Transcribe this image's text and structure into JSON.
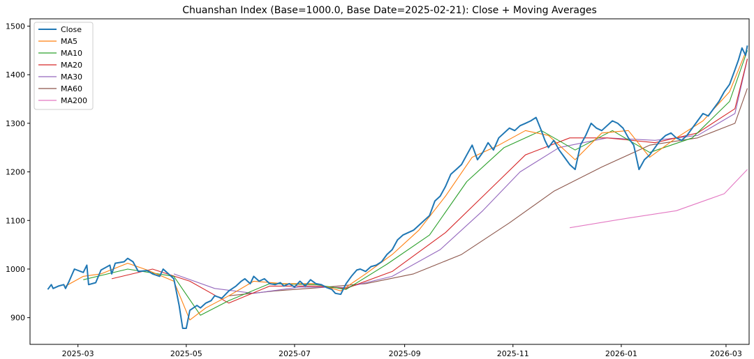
{
  "chart_data": {
    "type": "line",
    "title": "Chuanshan Index (Base=1000.0, Base Date=2025-02-21): Close + Moving Averages",
    "xlabel": "",
    "ylabel": "",
    "xlim": [
      "2025-02-02",
      "2026-03-14"
    ],
    "ylim": [
      845,
      1515
    ],
    "x_ticks": [
      "2025-03",
      "2025-05",
      "2025-07",
      "2025-09",
      "2025-11",
      "2026-01",
      "2026-03"
    ],
    "y_ticks": [
      900,
      1000,
      1100,
      1200,
      1300,
      1400,
      1500
    ],
    "legend_position": "top-left",
    "grid": false,
    "series": [
      {
        "name": "Close",
        "color": "#1f77b4",
        "points": [
          [
            "2025-02-12",
            958
          ],
          [
            "2025-02-14",
            968
          ],
          [
            "2025-02-15",
            960
          ],
          [
            "2025-02-18",
            965
          ],
          [
            "2025-02-21",
            968
          ],
          [
            "2025-02-22",
            960
          ],
          [
            "2025-02-24",
            975
          ],
          [
            "2025-02-27",
            1000
          ],
          [
            "2025-03-04",
            993
          ],
          [
            "2025-03-06",
            1008
          ],
          [
            "2025-03-07",
            968
          ],
          [
            "2025-03-11",
            972
          ],
          [
            "2025-03-14",
            998
          ],
          [
            "2025-03-19",
            1008
          ],
          [
            "2025-03-20",
            990
          ],
          [
            "2025-03-22",
            1012
          ],
          [
            "2025-03-27",
            1015
          ],
          [
            "2025-03-29",
            1022
          ],
          [
            "2025-04-01",
            1015
          ],
          [
            "2025-04-04",
            995
          ],
          [
            "2025-04-09",
            997
          ],
          [
            "2025-04-12",
            990
          ],
          [
            "2025-04-16",
            985
          ],
          [
            "2025-04-18",
            1000
          ],
          [
            "2025-04-24",
            980
          ],
          [
            "2025-04-27",
            925
          ],
          [
            "2025-04-29",
            878
          ],
          [
            "2025-05-01",
            878
          ],
          [
            "2025-05-03",
            915
          ],
          [
            "2025-05-07",
            925
          ],
          [
            "2025-05-09",
            920
          ],
          [
            "2025-05-12",
            930
          ],
          [
            "2025-05-15",
            935
          ],
          [
            "2025-05-17",
            945
          ],
          [
            "2025-05-21",
            940
          ],
          [
            "2025-05-25",
            955
          ],
          [
            "2025-05-29",
            965
          ],
          [
            "2025-06-01",
            975
          ],
          [
            "2025-06-03",
            980
          ],
          [
            "2025-06-06",
            970
          ],
          [
            "2025-06-08",
            985
          ],
          [
            "2025-06-11",
            975
          ],
          [
            "2025-06-14",
            980
          ],
          [
            "2025-06-17",
            970
          ],
          [
            "2025-06-20",
            968
          ],
          [
            "2025-06-23",
            972
          ],
          [
            "2025-06-25",
            965
          ],
          [
            "2025-06-28",
            970
          ],
          [
            "2025-07-01",
            963
          ],
          [
            "2025-07-04",
            975
          ],
          [
            "2025-07-07",
            965
          ],
          [
            "2025-07-10",
            978
          ],
          [
            "2025-07-13",
            970
          ],
          [
            "2025-07-16",
            968
          ],
          [
            "2025-07-19",
            962
          ],
          [
            "2025-07-22",
            958
          ],
          [
            "2025-07-24",
            950
          ],
          [
            "2025-07-27",
            948
          ],
          [
            "2025-07-30",
            970
          ],
          [
            "2025-08-02",
            985
          ],
          [
            "2025-08-05",
            998
          ],
          [
            "2025-08-07",
            1000
          ],
          [
            "2025-08-10",
            995
          ],
          [
            "2025-08-13",
            1005
          ],
          [
            "2025-08-16",
            1008
          ],
          [
            "2025-08-19",
            1015
          ],
          [
            "2025-08-22",
            1030
          ],
          [
            "2025-08-25",
            1040
          ],
          [
            "2025-08-28",
            1060
          ],
          [
            "2025-08-31",
            1070
          ],
          [
            "2025-09-03",
            1075
          ],
          [
            "2025-09-06",
            1080
          ],
          [
            "2025-09-09",
            1090
          ],
          [
            "2025-09-12",
            1100
          ],
          [
            "2025-09-15",
            1110
          ],
          [
            "2025-09-18",
            1140
          ],
          [
            "2025-09-21",
            1150
          ],
          [
            "2025-09-24",
            1170
          ],
          [
            "2025-09-27",
            1195
          ],
          [
            "2025-09-30",
            1205
          ],
          [
            "2025-10-03",
            1215
          ],
          [
            "2025-10-06",
            1235
          ],
          [
            "2025-10-09",
            1255
          ],
          [
            "2025-10-12",
            1225
          ],
          [
            "2025-10-15",
            1240
          ],
          [
            "2025-10-18",
            1260
          ],
          [
            "2025-10-21",
            1245
          ],
          [
            "2025-10-24",
            1270
          ],
          [
            "2025-10-27",
            1280
          ],
          [
            "2025-10-30",
            1290
          ],
          [
            "2025-11-02",
            1285
          ],
          [
            "2025-11-05",
            1295
          ],
          [
            "2025-11-08",
            1300
          ],
          [
            "2025-11-11",
            1305
          ],
          [
            "2025-11-14",
            1312
          ],
          [
            "2025-11-17",
            1285
          ],
          [
            "2025-11-19",
            1265
          ],
          [
            "2025-11-21",
            1250
          ],
          [
            "2025-11-24",
            1265
          ],
          [
            "2025-11-27",
            1245
          ],
          [
            "2025-11-30",
            1230
          ],
          [
            "2025-12-03",
            1215
          ],
          [
            "2025-12-06",
            1205
          ],
          [
            "2025-12-09",
            1255
          ],
          [
            "2025-12-12",
            1275
          ],
          [
            "2025-12-15",
            1300
          ],
          [
            "2025-12-18",
            1290
          ],
          [
            "2025-12-21",
            1285
          ],
          [
            "2025-12-24",
            1295
          ],
          [
            "2025-12-27",
            1305
          ],
          [
            "2025-12-30",
            1300
          ],
          [
            "2026-01-02",
            1290
          ],
          [
            "2026-01-05",
            1270
          ],
          [
            "2026-01-08",
            1255
          ],
          [
            "2026-01-11",
            1205
          ],
          [
            "2026-01-14",
            1225
          ],
          [
            "2026-01-17",
            1235
          ],
          [
            "2026-01-20",
            1250
          ],
          [
            "2026-01-23",
            1265
          ],
          [
            "2026-01-26",
            1275
          ],
          [
            "2026-01-29",
            1280
          ],
          [
            "2026-02-01",
            1270
          ],
          [
            "2026-02-04",
            1265
          ],
          [
            "2026-02-07",
            1275
          ],
          [
            "2026-02-10",
            1290
          ],
          [
            "2026-02-13",
            1305
          ],
          [
            "2026-02-16",
            1320
          ],
          [
            "2026-02-19",
            1315
          ],
          [
            "2026-02-22",
            1330
          ],
          [
            "2026-02-25",
            1345
          ],
          [
            "2026-02-28",
            1365
          ],
          [
            "2026-03-03",
            1380
          ],
          [
            "2026-03-06",
            1410
          ],
          [
            "2026-03-08",
            1430
          ],
          [
            "2026-03-10",
            1455
          ],
          [
            "2026-03-12",
            1440
          ],
          [
            "2026-03-13",
            1460
          ]
        ]
      },
      {
        "name": "MA5",
        "color": "#ff7f0e",
        "points": [
          [
            "2025-02-22",
            965
          ],
          [
            "2025-03-04",
            985
          ],
          [
            "2025-03-14",
            990
          ],
          [
            "2025-03-29",
            1012
          ],
          [
            "2025-04-09",
            998
          ],
          [
            "2025-04-24",
            975
          ],
          [
            "2025-05-03",
            895
          ],
          [
            "2025-05-12",
            920
          ],
          [
            "2025-05-25",
            945
          ],
          [
            "2025-06-08",
            975
          ],
          [
            "2025-06-25",
            970
          ],
          [
            "2025-07-13",
            970
          ],
          [
            "2025-07-27",
            955
          ],
          [
            "2025-08-10",
            990
          ],
          [
            "2025-08-25",
            1030
          ],
          [
            "2025-09-09",
            1080
          ],
          [
            "2025-09-24",
            1150
          ],
          [
            "2025-10-09",
            1230
          ],
          [
            "2025-10-24",
            1255
          ],
          [
            "2025-11-08",
            1285
          ],
          [
            "2025-11-21",
            1275
          ],
          [
            "2025-12-06",
            1225
          ],
          [
            "2025-12-21",
            1280
          ],
          [
            "2026-01-05",
            1285
          ],
          [
            "2026-01-17",
            1230
          ],
          [
            "2026-02-01",
            1270
          ],
          [
            "2026-02-16",
            1305
          ],
          [
            "2026-03-03",
            1365
          ],
          [
            "2026-03-13",
            1455
          ]
        ]
      },
      {
        "name": "MA10",
        "color": "#2ca02c",
        "points": [
          [
            "2025-03-04",
            978
          ],
          [
            "2025-03-29",
            1000
          ],
          [
            "2025-04-24",
            985
          ],
          [
            "2025-05-09",
            905
          ],
          [
            "2025-05-25",
            935
          ],
          [
            "2025-06-17",
            970
          ],
          [
            "2025-07-13",
            968
          ],
          [
            "2025-07-30",
            958
          ],
          [
            "2025-08-22",
            1010
          ],
          [
            "2025-09-15",
            1070
          ],
          [
            "2025-10-06",
            1180
          ],
          [
            "2025-10-27",
            1250
          ],
          [
            "2025-11-17",
            1285
          ],
          [
            "2025-12-06",
            1245
          ],
          [
            "2025-12-27",
            1285
          ],
          [
            "2026-01-17",
            1240
          ],
          [
            "2026-02-10",
            1270
          ],
          [
            "2026-03-03",
            1345
          ],
          [
            "2026-03-13",
            1450
          ]
        ]
      },
      {
        "name": "MA20",
        "color": "#d62728",
        "points": [
          [
            "2025-03-20",
            980
          ],
          [
            "2025-04-12",
            1000
          ],
          [
            "2025-05-03",
            975
          ],
          [
            "2025-05-25",
            930
          ],
          [
            "2025-06-17",
            965
          ],
          [
            "2025-07-13",
            965
          ],
          [
            "2025-07-30",
            960
          ],
          [
            "2025-08-25",
            995
          ],
          [
            "2025-09-24",
            1075
          ],
          [
            "2025-10-18",
            1160
          ],
          [
            "2025-11-08",
            1235
          ],
          [
            "2025-12-03",
            1270
          ],
          [
            "2025-12-24",
            1270
          ],
          [
            "2026-01-20",
            1260
          ],
          [
            "2026-02-13",
            1280
          ],
          [
            "2026-03-06",
            1330
          ],
          [
            "2026-03-13",
            1433
          ]
        ]
      },
      {
        "name": "MA30",
        "color": "#9467bd",
        "points": [
          [
            "2025-04-24",
            990
          ],
          [
            "2025-05-17",
            960
          ],
          [
            "2025-06-08",
            950
          ],
          [
            "2025-07-04",
            963
          ],
          [
            "2025-07-30",
            962
          ],
          [
            "2025-08-25",
            985
          ],
          [
            "2025-09-21",
            1040
          ],
          [
            "2025-10-15",
            1120
          ],
          [
            "2025-11-05",
            1200
          ],
          [
            "2025-11-27",
            1250
          ],
          [
            "2025-12-24",
            1270
          ],
          [
            "2026-01-20",
            1265
          ],
          [
            "2026-02-13",
            1275
          ],
          [
            "2026-03-06",
            1320
          ],
          [
            "2026-03-13",
            1432
          ]
        ]
      },
      {
        "name": "MA60",
        "color": "#8c564b",
        "points": [
          [
            "2025-05-25",
            945
          ],
          [
            "2025-06-20",
            955
          ],
          [
            "2025-07-16",
            962
          ],
          [
            "2025-08-10",
            970
          ],
          [
            "2025-09-06",
            990
          ],
          [
            "2025-10-03",
            1030
          ],
          [
            "2025-10-30",
            1095
          ],
          [
            "2025-11-24",
            1160
          ],
          [
            "2025-12-21",
            1210
          ],
          [
            "2026-01-17",
            1255
          ],
          [
            "2026-02-13",
            1270
          ],
          [
            "2026-03-06",
            1300
          ],
          [
            "2026-03-13",
            1372
          ]
        ]
      },
      {
        "name": "MA200",
        "color": "#e377c2",
        "points": [
          [
            "2025-12-03",
            1085
          ],
          [
            "2026-01-05",
            1105
          ],
          [
            "2026-02-01",
            1120
          ],
          [
            "2026-02-28",
            1155
          ],
          [
            "2026-03-13",
            1205
          ]
        ]
      }
    ]
  }
}
